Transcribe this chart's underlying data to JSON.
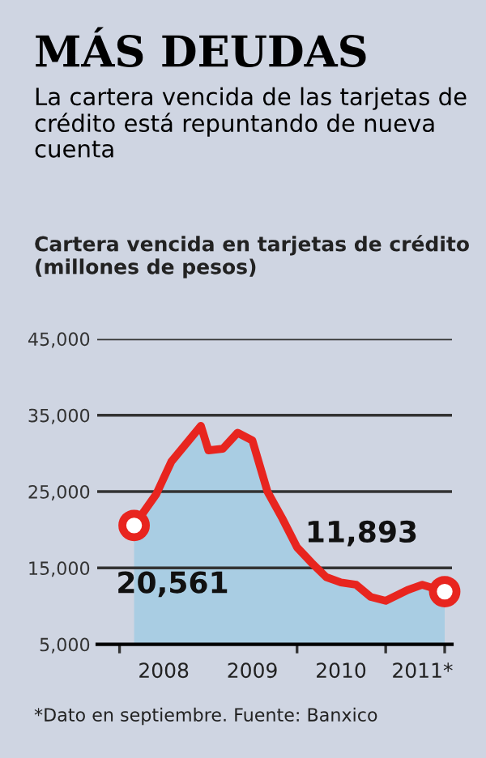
{
  "chart_data": {
    "type": "area",
    "title": "MÁS DEUDAS",
    "subtitle": "La cartera vencida de las tarjetas de crédito está repuntando de nueva cuenta",
    "ylabel": "Cartera vencida en tarjetas de crédito (millones de pesos)",
    "x": [
      "2008-03",
      "2008-06",
      "2008-08",
      "2008-12",
      "2009-01",
      "2009-03",
      "2009-05",
      "2009-07",
      "2009-09",
      "2009-11",
      "2010-01",
      "2010-03",
      "2010-05",
      "2010-07",
      "2010-09",
      "2010-11",
      "2011-01",
      "2011-04",
      "2011-06",
      "2011-09"
    ],
    "series": [
      {
        "color": "#a9cde3",
        "values": [
          20561,
          24700,
          28900,
          33600,
          30400,
          30600,
          32700,
          31700,
          25000,
          21500,
          17700,
          15700,
          13800,
          13100,
          12800,
          11200,
          10700,
          12100,
          12800,
          11893
        ]
      },
      {
        "type": "line",
        "color": "#e8251f",
        "values": [
          20561,
          24700,
          28900,
          33600,
          30400,
          30600,
          32700,
          31700,
          25000,
          21500,
          17700,
          15700,
          13800,
          13100,
          12800,
          11200,
          10700,
          12100,
          12800,
          11893
        ]
      },
      {
        "type": "scatter",
        "marker": "circle",
        "color": "#e8251f",
        "x": [
          "2008-03",
          "2011-09"
        ],
        "values": [
          20561,
          11893
        ]
      }
    ],
    "ylim": [
      5000,
      45000
    ],
    "yticks": [
      {
        "value": 5000,
        "label": "5,000"
      },
      {
        "value": 15000,
        "label": "15,000"
      },
      {
        "value": 25000,
        "label": "25,000"
      },
      {
        "value": 35000,
        "label": "35,000"
      },
      {
        "value": 45000,
        "label": "45,000"
      }
    ],
    "xlim": [
      "2007-10-01",
      "2011-10-01"
    ],
    "xticks": [
      {
        "value": "2008-01-01",
        "label": null
      },
      {
        "value": "2008-07-01",
        "label": "2008"
      },
      {
        "value": "2009-07-01",
        "label": "2009"
      },
      {
        "value": "2010-01-01",
        "label": null
      },
      {
        "value": "2010-07-01",
        "label": "2010"
      },
      {
        "value": "2011-01-01",
        "label": null
      },
      {
        "value": "2011-06-01",
        "label": "2011*"
      },
      {
        "value": "2011-09-01",
        "label": null
      }
    ],
    "grid": "y",
    "annotations": [
      {
        "text": "20,561",
        "x": "2008-03",
        "y": 20561
      },
      {
        "text": "11,893",
        "x": "2011-09",
        "y": 11893
      },
      "*Dato en septiembre. Fuente: Banxico"
    ]
  }
}
